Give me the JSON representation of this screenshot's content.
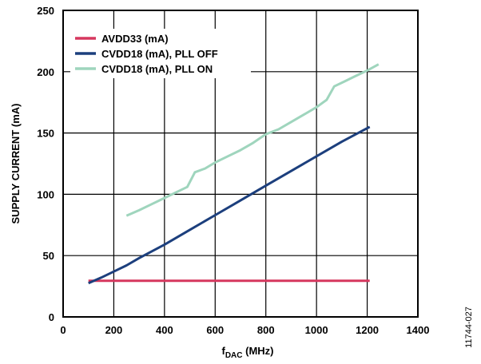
{
  "chart_data": {
    "type": "line",
    "title": "",
    "xlabel": {
      "main": "f",
      "sub": "DAC",
      "suffix": " (MHz)"
    },
    "ylabel": "SUPPLY CURRENT (mA)",
    "xlim": [
      0,
      1400
    ],
    "ylim": [
      0,
      250
    ],
    "xticks": [
      0,
      200,
      400,
      600,
      800,
      1000,
      1200,
      1400
    ],
    "yticks": [
      0,
      50,
      100,
      150,
      200,
      250
    ],
    "grid": true,
    "legend_position": "top-left",
    "figure_id": "11744-027",
    "series": [
      {
        "name": "AVDD33 (mA)",
        "color": "#d6375e",
        "x": [
          100,
          1210
        ],
        "y": [
          29.5,
          29.5
        ]
      },
      {
        "name": "CVDD18 (mA), PLL OFF",
        "color": "#1c3f7d",
        "x": [
          100,
          150,
          200,
          250,
          300,
          400,
          500,
          600,
          700,
          800,
          900,
          1000,
          1100,
          1210
        ],
        "y": [
          27.5,
          32,
          37,
          42,
          48,
          59,
          71,
          83,
          95,
          107,
          119,
          131,
          143,
          155
        ]
      },
      {
        "name": "CVDD18 (mA), PLL ON",
        "color": "#9fd5bd",
        "x": [
          250,
          300,
          350,
          400,
          450,
          490,
          520,
          560,
          600,
          650,
          700,
          750,
          800,
          850,
          900,
          950,
          1000,
          1040,
          1070,
          1110,
          1150,
          1200,
          1245
        ],
        "y": [
          82.5,
          87,
          92,
          97,
          102,
          106,
          118,
          121,
          126,
          131,
          136,
          142,
          149,
          153,
          159,
          165,
          171,
          177,
          188,
          192,
          196,
          201,
          206
        ]
      }
    ]
  }
}
